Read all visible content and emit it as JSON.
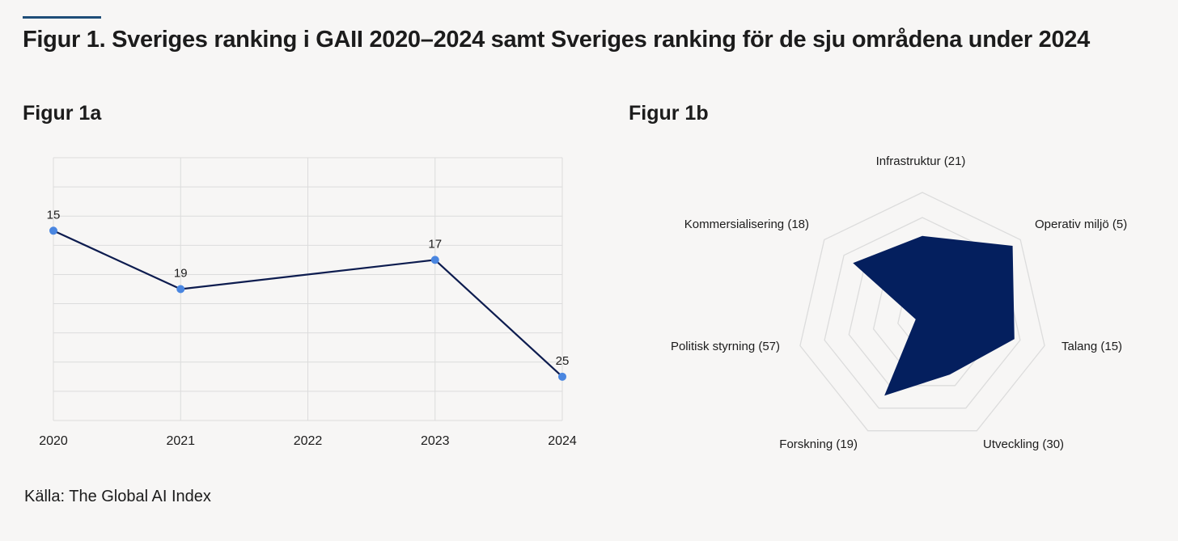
{
  "header": {
    "title": "Figur 1. Sveriges ranking i GAII 2020–2024 samt Sveriges ranking för de sju områdena under 2024"
  },
  "source": "Källa: The Global AI Index",
  "colors": {
    "line": "#0d1c4f",
    "point": "#4a86e0",
    "radar_fill": "#041f5e",
    "grid": "#dcdcdc",
    "accent": "#1f4e79"
  },
  "chart_data": [
    {
      "id": "figur-1a",
      "title": "Figur 1a",
      "type": "line",
      "x": [
        "2020",
        "2021",
        "2022",
        "2023",
        "2024"
      ],
      "series": [
        {
          "values": [
            15,
            19,
            null,
            17,
            25
          ]
        }
      ],
      "data_labels": [
        "15",
        "19",
        "",
        "17",
        "25"
      ],
      "ylim": [
        28,
        10
      ],
      "y_inverted": true,
      "y_tick_labels_visible": false,
      "grid": true
    },
    {
      "id": "figur-1b",
      "title": "Figur 1b",
      "type": "radar",
      "axes": [
        {
          "label": "Infrastruktur  (21)",
          "rank": 21
        },
        {
          "label": "Operativ miljö  (5)",
          "rank": 5
        },
        {
          "label": "Talang (15)",
          "rank": 15
        },
        {
          "label": "Utveckling (30)",
          "rank": 30
        },
        {
          "label": "Forskning (19)",
          "rank": 19
        },
        {
          "label": "Politisk styrning (57)",
          "rank": 57
        },
        {
          "label": "Kommersialisering (18)",
          "rank": 18
        }
      ],
      "rings": 5,
      "grid": true
    }
  ]
}
